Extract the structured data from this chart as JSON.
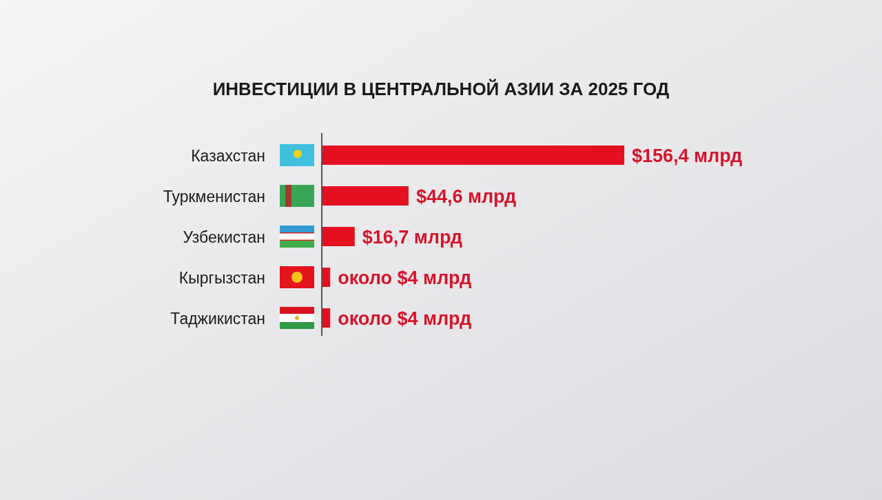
{
  "chart_data": {
    "type": "bar",
    "orientation": "horizontal",
    "title": "ИНВЕСТИЦИИ В ЦЕНТРАЛЬНОЙ АЗИИ ЗА 2025 ГОД",
    "categories": [
      "Казахстан",
      "Туркменистан",
      "Узбекистан",
      "Кыргызстан",
      "Таджикистан"
    ],
    "values": [
      156.4,
      44.6,
      16.7,
      4,
      4
    ],
    "value_labels": [
      "$156,4 млрд",
      "$44,6 млрд",
      "$16,7 млрд",
      "около $4 млрд",
      "около $4 млрд"
    ],
    "color": "#e5101f"
  }
}
